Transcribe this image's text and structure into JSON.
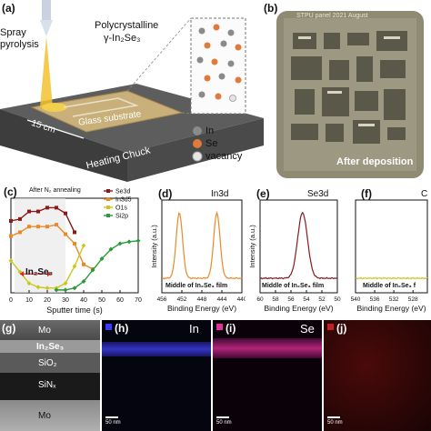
{
  "panel_a": {
    "label": "(a)",
    "spray_line1": "Spray",
    "spray_line2": "pyrolysis",
    "film_line1": "Polycrystalline",
    "film_line2": "γ-In₂Se₃",
    "glass": "Glass substrate",
    "size": "15 cm",
    "chuck": "Heating Chuck",
    "legend": [
      {
        "name": "In",
        "color": "#8a8a8a"
      },
      {
        "name": "Se",
        "color": "#e07a3a"
      },
      {
        "name": "vacancy",
        "color": "#e6e6e6"
      }
    ]
  },
  "panel_b": {
    "label": "(b)",
    "top_text": "STPU panel 2021 August",
    "caption": "After deposition"
  },
  "panel_c": {
    "label": "(c)",
    "annotation": "After N₂ annealing",
    "region_label": "In₂Se₃"
  },
  "panel_d": {
    "label": "(d)",
    "element": "In3d",
    "film_note": "Middle of In₂Se₃ film"
  },
  "panel_e": {
    "label": "(e)",
    "element": "Se3d",
    "film_note": "Middle of In₂Se₃ film"
  },
  "panel_f": {
    "label": "(f)",
    "element": "C",
    "film_note": "Middle of In₂Se₃ f"
  },
  "panel_g": {
    "label": "(g)",
    "layers": [
      "Mo",
      "In₂Se₃",
      "SiO₂",
      "SiNₓ",
      "Mo"
    ]
  },
  "panel_h": {
    "label": "(h)",
    "element": "In",
    "scale": "50 nm",
    "color": "#3a3aff"
  },
  "panel_i": {
    "label": "(i)",
    "element": "Se",
    "scale": "50 nm",
    "color": "#e0309a"
  },
  "panel_j": {
    "label": "(j)",
    "element": "",
    "scale": "50 nm",
    "color": "#c02020"
  },
  "chart_data": [
    {
      "type": "line",
      "panel": "c",
      "xlabel": "Sputter time (s)",
      "ylabel": "",
      "xlim": [
        0,
        70
      ],
      "ylim": [
        0,
        100
      ],
      "x_ticks": [
        "0",
        "10",
        "20",
        "30",
        "40",
        "50",
        "60",
        "70"
      ],
      "legend": "top-right",
      "series": [
        {
          "name": "Se3d",
          "color": "#8b1a1a",
          "x": [
            0,
            5,
            10,
            15,
            20,
            25,
            30,
            35
          ],
          "y": [
            76,
            78,
            86,
            86,
            90,
            90,
            84,
            64
          ]
        },
        {
          "name": "In3d5",
          "color": "#e88a2a",
          "x": [
            0,
            5,
            10,
            15,
            20,
            25,
            30,
            35,
            40,
            45
          ],
          "y": [
            60,
            64,
            70,
            70,
            70,
            72,
            62,
            52,
            30,
            25
          ]
        },
        {
          "name": "O1s",
          "color": "#c8c820",
          "x": [
            0,
            5,
            10,
            15,
            20,
            25,
            30,
            35,
            40
          ],
          "y": [
            34,
            22,
            10,
            6,
            5,
            5,
            10,
            28,
            50
          ]
        },
        {
          "name": "Si2p",
          "color": "#2a9a3a",
          "x": [
            25,
            30,
            35,
            40,
            45,
            50,
            55,
            60,
            65,
            70
          ],
          "y": [
            3,
            3,
            5,
            12,
            24,
            36,
            46,
            52,
            54,
            55
          ]
        }
      ]
    },
    {
      "type": "line",
      "panel": "d",
      "xlabel": "Binding Energy (eV)",
      "ylabel": "Intensity (a.u.)",
      "xlim": [
        456,
        440
      ],
      "x_ticks": [
        "456",
        "452",
        "448",
        "444",
        "440"
      ],
      "series": [
        {
          "name": "",
          "color": "#e88a2a",
          "peaks": [
            452.5,
            445.0
          ]
        }
      ]
    },
    {
      "type": "line",
      "panel": "e",
      "xlabel": "Binding Energy (eV)",
      "ylabel": "Intensity (a.u.)",
      "xlim": [
        60,
        50
      ],
      "x_ticks": [
        "60",
        "58",
        "56",
        "54",
        "52",
        "50"
      ],
      "series": [
        {
          "name": "",
          "color": "#8b1a1a",
          "peaks": [
            54.5
          ]
        }
      ]
    },
    {
      "type": "line",
      "panel": "f",
      "xlabel": "Binding Energy (eV)",
      "ylabel": "",
      "xlim": [
        540,
        525
      ],
      "x_ticks": [
        "540",
        "536",
        "532",
        "528"
      ],
      "series": [
        {
          "name": "",
          "color": "#c8c820",
          "peaks": []
        }
      ]
    }
  ]
}
